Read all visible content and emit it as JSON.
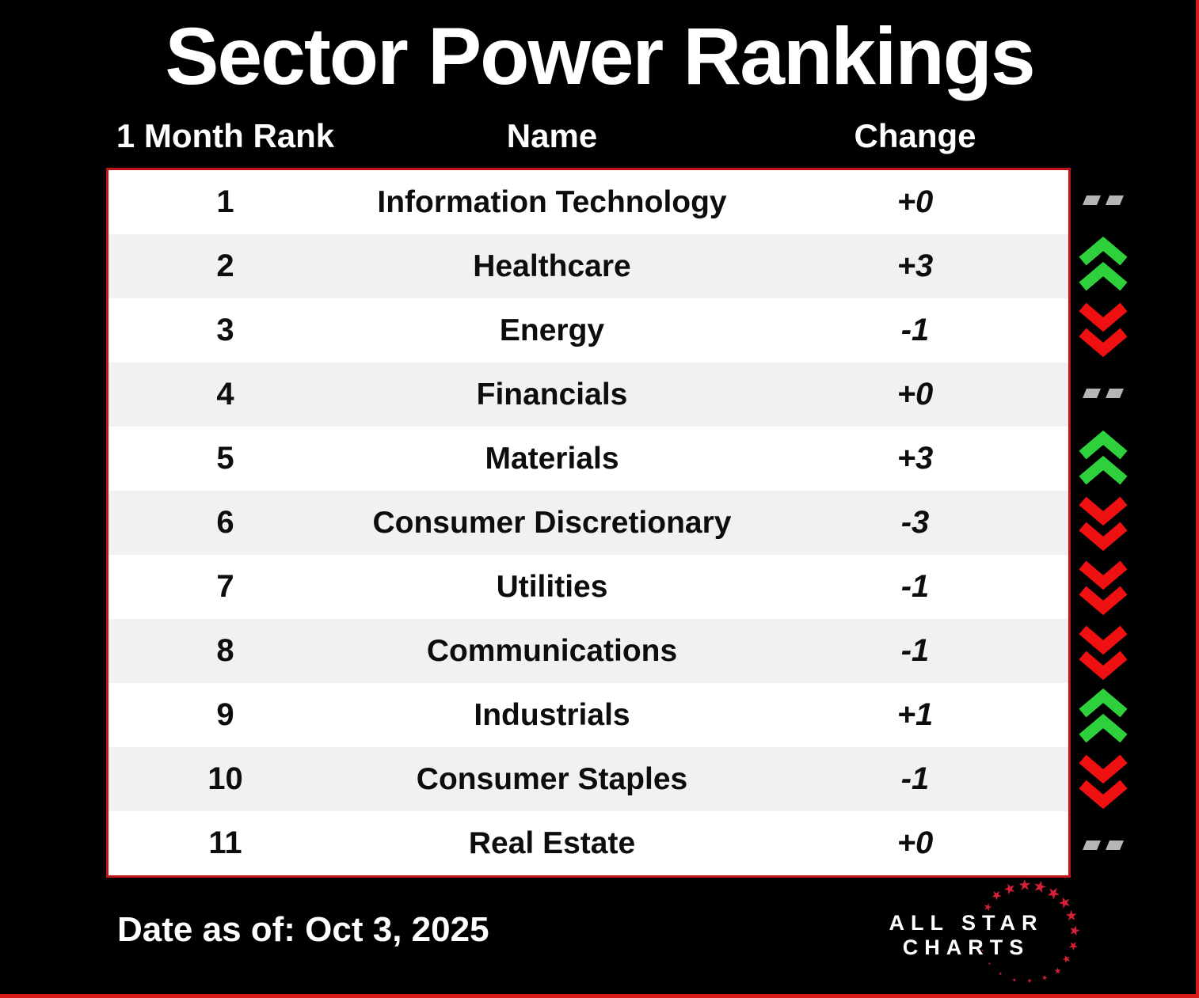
{
  "title": "Sector Power Rankings",
  "footer": {
    "date": "Date as of: Oct 3, 2025"
  },
  "logo": {
    "line1": "ALL STAR",
    "line2": "CHARTS"
  },
  "colors": {
    "background": "#000000",
    "border": "#bf1318",
    "frame": "#d61a1a",
    "row_alt": "#f1f1f1",
    "up": "#2ed13c",
    "down": "#ef1111",
    "flat": "#b5b5b5",
    "star": "#d71f37"
  },
  "chart_data": {
    "type": "table",
    "title": "Sector Power Rankings",
    "columns": [
      "1 Month Rank",
      "Name",
      "Change"
    ],
    "rows": [
      {
        "rank": 1,
        "name": "Information Technology",
        "change": "+0",
        "direction": "flat"
      },
      {
        "rank": 2,
        "name": "Healthcare",
        "change": "+3",
        "direction": "up"
      },
      {
        "rank": 3,
        "name": "Energy",
        "change": "-1",
        "direction": "down"
      },
      {
        "rank": 4,
        "name": "Financials",
        "change": "+0",
        "direction": "flat"
      },
      {
        "rank": 5,
        "name": "Materials",
        "change": "+3",
        "direction": "up"
      },
      {
        "rank": 6,
        "name": "Consumer Discretionary",
        "change": "-3",
        "direction": "down"
      },
      {
        "rank": 7,
        "name": "Utilities",
        "change": "-1",
        "direction": "down"
      },
      {
        "rank": 8,
        "name": "Communications",
        "change": "-1",
        "direction": "down"
      },
      {
        "rank": 9,
        "name": "Industrials",
        "change": "+1",
        "direction": "up"
      },
      {
        "rank": 10,
        "name": "Consumer Staples",
        "change": "-1",
        "direction": "down"
      },
      {
        "rank": 11,
        "name": "Real Estate",
        "change": "+0",
        "direction": "flat"
      }
    ],
    "as_of": "Date as of: Oct 3, 2025",
    "legend": "double green chevron up = rank gained, double red chevron down = rank lost, gray dashes = unchanged"
  }
}
